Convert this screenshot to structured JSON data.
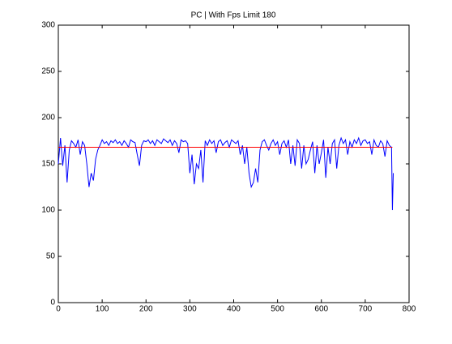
{
  "chart_data": {
    "type": "line",
    "title": "PC | With Fps Limit 180",
    "x": [
      0,
      5,
      10,
      15,
      20,
      25,
      30,
      35,
      40,
      45,
      50,
      55,
      60,
      65,
      70,
      75,
      80,
      85,
      90,
      95,
      100,
      105,
      110,
      115,
      120,
      125,
      130,
      135,
      140,
      145,
      150,
      155,
      160,
      165,
      170,
      175,
      180,
      185,
      190,
      195,
      200,
      205,
      210,
      215,
      220,
      225,
      230,
      235,
      240,
      245,
      250,
      255,
      260,
      265,
      270,
      275,
      280,
      285,
      290,
      295,
      300,
      305,
      310,
      315,
      320,
      325,
      330,
      335,
      340,
      345,
      350,
      355,
      360,
      365,
      370,
      375,
      380,
      385,
      390,
      395,
      400,
      405,
      410,
      415,
      420,
      425,
      430,
      435,
      440,
      445,
      450,
      455,
      460,
      465,
      470,
      475,
      480,
      485,
      490,
      495,
      500,
      505,
      510,
      515,
      520,
      525,
      530,
      535,
      540,
      545,
      550,
      555,
      560,
      565,
      570,
      575,
      580,
      585,
      590,
      595,
      600,
      605,
      610,
      615,
      620,
      625,
      630,
      635,
      640,
      645,
      650,
      655,
      660,
      665,
      670,
      675,
      680,
      685,
      690,
      695,
      700,
      705,
      710,
      715,
      720,
      725,
      730,
      735,
      740,
      745,
      750,
      755,
      760,
      762,
      764
    ],
    "series": [
      {
        "color": "#0000ff",
        "values": [
          150,
          178,
          148,
          170,
          130,
          165,
          175,
          172,
          168,
          176,
          160,
          174,
          170,
          150,
          125,
          140,
          132,
          155,
          165,
          170,
          176,
          172,
          174,
          170,
          175,
          173,
          176,
          172,
          174,
          170,
          175,
          172,
          168,
          176,
          174,
          173,
          160,
          148,
          170,
          175,
          174,
          176,
          172,
          175,
          170,
          176,
          174,
          172,
          177,
          175,
          173,
          176,
          170,
          175,
          172,
          162,
          176,
          174,
          175,
          172,
          140,
          160,
          128,
          150,
          145,
          165,
          130,
          175,
          170,
          176,
          172,
          175,
          162,
          174,
          176,
          170,
          173,
          175,
          168,
          176,
          174,
          172,
          175,
          160,
          170,
          150,
          168,
          140,
          125,
          130,
          145,
          130,
          165,
          174,
          176,
          170,
          165,
          172,
          176,
          170,
          174,
          160,
          172,
          175,
          168,
          176,
          150,
          170,
          148,
          176,
          172,
          145,
          170,
          150,
          155,
          165,
          174,
          140,
          170,
          150,
          162,
          176,
          135,
          168,
          150,
          172,
          176,
          145,
          170,
          178,
          172,
          176,
          160,
          174,
          168,
          176,
          172,
          178,
          170,
          175,
          176,
          172,
          174,
          160,
          176,
          170,
          168,
          175,
          172,
          158,
          175,
          170,
          168,
          100,
          140
        ]
      },
      {
        "color": "#ff0000",
        "x": [
          0,
          762
        ],
        "values": [
          168,
          168
        ]
      }
    ],
    "xlim": [
      0,
      800
    ],
    "xticks": [
      0,
      100,
      200,
      300,
      400,
      500,
      600,
      700,
      800
    ],
    "ylim": [
      0,
      300
    ],
    "yticks": [
      0,
      50,
      100,
      150,
      200,
      250,
      300
    ],
    "grid": false
  }
}
